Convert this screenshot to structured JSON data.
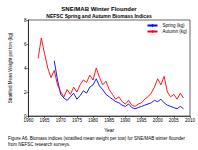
{
  "chart_data": {
    "type": "line",
    "title": "SNE/MAB Winter Flounder",
    "subtitle": "NEFSC Spring and Autumn Biomass Indices",
    "x_label": "Year",
    "y_label": "Stratified Mean Weight per tow (kg)",
    "caption": "Figure A6. Biomass indices (stratified mean weight per tow) for SNE/MAB winter flounder from NEFSC research surveys.",
    "x": [
      1963,
      1964,
      1965,
      1966,
      1967,
      1968,
      1969,
      1970,
      1971,
      1972,
      1973,
      1974,
      1975,
      1976,
      1977,
      1978,
      1979,
      1980,
      1981,
      1982,
      1983,
      1984,
      1985,
      1986,
      1987,
      1988,
      1989,
      1990,
      1991,
      1992,
      1993,
      1994,
      1995,
      1996,
      1997,
      1998,
      1999,
      2000,
      2001,
      2002,
      2003,
      2004,
      2005,
      2006,
      2007,
      2008
    ],
    "series": [
      {
        "name": "Spring (kg)",
        "color": "#0000ff",
        "values": [
          null,
          null,
          null,
          null,
          null,
          4.6,
          3.0,
          1.8,
          1.5,
          1.3,
          1.6,
          1.9,
          1.4,
          1.7,
          2.1,
          1.9,
          2.4,
          2.6,
          3.1,
          2.5,
          2.2,
          1.8,
          1.6,
          1.4,
          1.2,
          1.1,
          0.9,
          0.8,
          1.0,
          0.7,
          0.6,
          0.7,
          0.8,
          0.9,
          1.0,
          1.1,
          1.3,
          1.2,
          1.4,
          1.1,
          0.9,
          0.8,
          0.7,
          0.6,
          0.8,
          0.6
        ]
      },
      {
        "name": "Autumn (kg)",
        "color": "#ff0000",
        "values": [
          4.8,
          6.5,
          5.2,
          4.0,
          3.2,
          3.8,
          2.6,
          2.0,
          1.6,
          2.2,
          1.8,
          2.4,
          2.0,
          2.6,
          3.0,
          2.8,
          3.4,
          3.0,
          4.0,
          3.2,
          2.6,
          2.9,
          2.2,
          1.8,
          1.4,
          1.6,
          1.2,
          1.0,
          1.3,
          0.9,
          0.8,
          1.0,
          1.1,
          1.4,
          1.6,
          1.9,
          2.4,
          3.1,
          2.6,
          3.3,
          2.0,
          1.6,
          1.8,
          1.4,
          1.9,
          1.5
        ]
      }
    ],
    "xlim": [
      1960,
      2010
    ],
    "xticks": [
      1960,
      1965,
      1970,
      1975,
      1980,
      1985,
      1990,
      1995,
      2000,
      2005,
      2010
    ],
    "ylim": [
      0,
      8
    ],
    "yticks": [
      0,
      2,
      4,
      6,
      8
    ],
    "legend": "top-right",
    "grid": false
  }
}
